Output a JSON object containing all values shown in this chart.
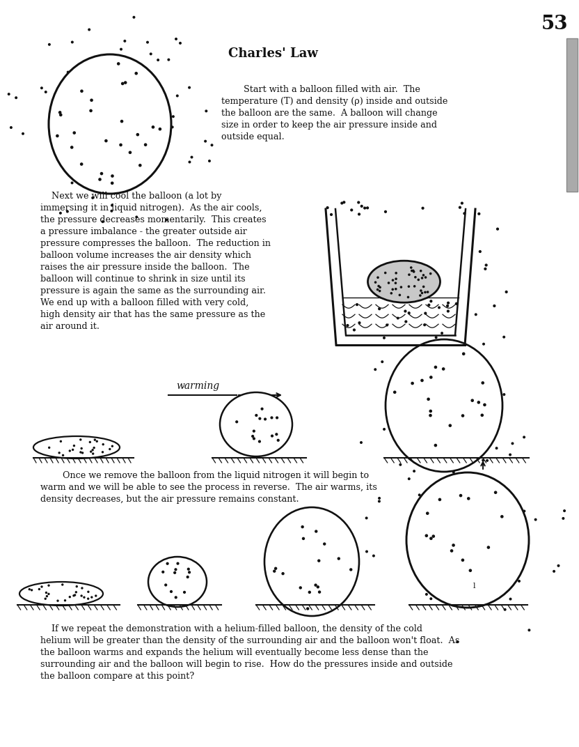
{
  "title": "Charles' Law",
  "page_number": "53",
  "para1": "        Start with a balloon filled with air.  The\ntemperature (T) and density (ρ) inside and outside\nthe balloon are the same.  A balloon will change\nsize in order to keep the air pressure inside and\noutside equal.",
  "para2": "    Next we will cool the balloon (a lot by\nimmersing it in liquid nitrogen).  As the air cools,\nthe pressure decreases momentarily.  This creates\na pressure imbalance - the greater outside air\npressure compresses the balloon.  The reduction in\nballoon volume increases the air density which\nraises the air pressure inside the balloon.  The\nballoon will continue to shrink in size until its\npressure is again the same as the surrounding air.\nWe end up with a balloon filled with very cold,\nhigh density air that has the same pressure as the\nair around it.",
  "para3": "        Once we remove the balloon from the liquid nitrogen it will begin to\nwarm and we will be able to see the process in reverse.  The air warms, its\ndensity decreases, but the air pressure remains constant.",
  "para4": "    If we repeat the demonstration with a helium-filled balloon, the density of the cold\nhelium will be greater than the density of the surrounding air and the balloon won't float.  As\nthe balloon warms and expands the helium will eventually become less dense than the\nsurrounding air and the balloon will begin to rise.  How do the pressures inside and outside\nthe balloon compare at this point?",
  "warming_label": "warming"
}
